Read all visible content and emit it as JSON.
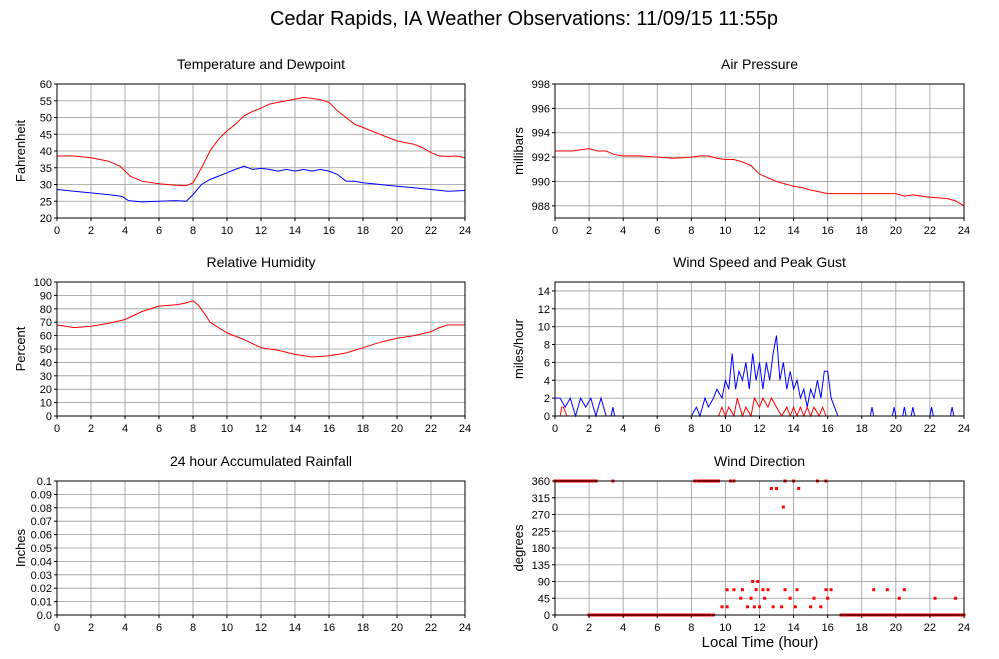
{
  "page": {
    "title": "Cedar Rapids, IA Weather Observations: 11/09/15 11:55p",
    "x_caption": "Local Time (hour)"
  },
  "colors": {
    "red": "#ff0000",
    "blue": "#0000ff",
    "grid": "#999999",
    "frame": "#000000"
  },
  "chart_data": [
    {
      "id": "temp",
      "type": "line",
      "title": "Temperature and Dewpoint",
      "ylabel": "Fahrenheit",
      "xlabel": "",
      "xlim": [
        0,
        24
      ],
      "ylim": [
        20,
        60
      ],
      "xticks": [
        0,
        2,
        4,
        6,
        8,
        10,
        12,
        14,
        16,
        18,
        20,
        22,
        24
      ],
      "yticks": [
        20,
        25,
        30,
        35,
        40,
        45,
        50,
        55,
        60
      ],
      "grid": true,
      "series": [
        {
          "color": "#ff0000",
          "x": [
            0,
            1,
            2,
            3,
            3.7,
            4.3,
            5,
            6,
            7,
            7.6,
            8,
            8.5,
            9,
            9.5,
            10,
            10.5,
            11,
            11.5,
            12,
            12.5,
            13,
            13.5,
            14,
            14.5,
            15,
            15.5,
            16,
            16.5,
            17,
            17.5,
            18,
            18.5,
            19,
            19.5,
            20,
            20.5,
            21,
            21.5,
            22,
            22.5,
            23,
            23.5,
            24
          ],
          "y": [
            38.5,
            38.5,
            38,
            37,
            35.5,
            32.5,
            31,
            30.2,
            29.8,
            29.6,
            30.5,
            35,
            40,
            43.5,
            46,
            48,
            50.5,
            51.8,
            52.8,
            54,
            54.5,
            55,
            55.5,
            56,
            55.7,
            55.3,
            54.5,
            52,
            50,
            48,
            47,
            46,
            45,
            44,
            43,
            42.5,
            42,
            41,
            39.5,
            38.5,
            38.4,
            38.5,
            38
          ]
        },
        {
          "color": "#0000ff",
          "x": [
            0,
            1,
            2,
            3,
            3.8,
            4.2,
            5,
            6,
            7,
            7.6,
            8,
            8.5,
            9,
            9.5,
            10,
            10.5,
            11,
            11.5,
            12,
            12.5,
            13,
            13.5,
            14,
            14.5,
            15,
            15.5,
            16,
            16.5,
            17,
            17.5,
            18,
            19,
            20,
            21,
            22,
            23,
            24
          ],
          "y": [
            28.5,
            28,
            27.5,
            27,
            26.5,
            25.2,
            24.8,
            25,
            25.2,
            25,
            27,
            30,
            31.5,
            32.5,
            33.5,
            34.5,
            35.5,
            34.5,
            34.8,
            34.5,
            34,
            34.5,
            34,
            34.5,
            34,
            34.5,
            34,
            33,
            31,
            31,
            30.5,
            30,
            29.5,
            29,
            28.5,
            28,
            28.2
          ]
        }
      ]
    },
    {
      "id": "pressure",
      "type": "line",
      "title": "Air Pressure",
      "ylabel": "millibars",
      "xlabel": "",
      "xlim": [
        0,
        24
      ],
      "ylim": [
        987,
        998
      ],
      "xticks": [
        0,
        2,
        4,
        6,
        8,
        10,
        12,
        14,
        16,
        18,
        20,
        22,
        24
      ],
      "yticks": [
        988,
        990,
        992,
        994,
        996,
        998
      ],
      "grid": true,
      "series": [
        {
          "color": "#ff0000",
          "x": [
            0,
            1,
            2,
            2.5,
            3,
            3.5,
            4,
            5,
            6,
            7,
            8,
            8.5,
            9,
            9.5,
            10,
            10.5,
            11,
            11.5,
            12,
            12.5,
            13,
            13.5,
            14,
            14.5,
            15,
            16,
            17,
            18,
            19,
            20,
            20.5,
            21,
            22,
            23,
            23.5,
            24
          ],
          "y": [
            992.5,
            992.5,
            992.7,
            992.5,
            992.5,
            992.2,
            992.1,
            992.1,
            992.0,
            991.9,
            992.0,
            992.1,
            992.1,
            991.9,
            991.8,
            991.8,
            991.6,
            991.3,
            990.6,
            990.3,
            990.0,
            989.8,
            989.6,
            989.5,
            989.3,
            989.0,
            989.0,
            989.0,
            989.0,
            989.0,
            988.8,
            988.9,
            988.7,
            988.6,
            988.4,
            988.0
          ]
        }
      ]
    },
    {
      "id": "rh",
      "type": "line",
      "title": "Relative Humidity",
      "ylabel": "Percent",
      "xlabel": "",
      "xlim": [
        0,
        24
      ],
      "ylim": [
        0,
        100
      ],
      "xticks": [
        0,
        2,
        4,
        6,
        8,
        10,
        12,
        14,
        16,
        18,
        20,
        22,
        24
      ],
      "yticks": [
        0,
        10,
        20,
        30,
        40,
        50,
        60,
        70,
        80,
        90,
        100
      ],
      "grid": true,
      "series": [
        {
          "color": "#ff0000",
          "x": [
            0,
            1,
            2,
            3,
            4,
            4.5,
            5,
            6,
            7,
            7.5,
            8,
            8.3,
            8.7,
            9,
            9.5,
            10,
            11,
            12,
            13,
            14,
            15,
            16,
            17,
            18,
            19,
            20,
            21,
            22,
            22.5,
            23,
            24
          ],
          "y": [
            68,
            66,
            67,
            69,
            72,
            75,
            78,
            82,
            83,
            84,
            86,
            83,
            76,
            70,
            66,
            62,
            57,
            51,
            49,
            46,
            44,
            45,
            47,
            51,
            55,
            58,
            60,
            63,
            66,
            68,
            68
          ]
        }
      ]
    },
    {
      "id": "wind",
      "type": "line",
      "title": "Wind Speed and Peak Gust",
      "ylabel": "miles/hour",
      "xlabel": "",
      "xlim": [
        0,
        24
      ],
      "ylim": [
        0,
        15
      ],
      "xticks": [
        0,
        2,
        4,
        6,
        8,
        10,
        12,
        14,
        16,
        18,
        20,
        22,
        24
      ],
      "yticks": [
        0,
        2,
        4,
        6,
        8,
        10,
        12,
        14
      ],
      "grid": true,
      "series": [
        {
          "color": "#0000ff",
          "x": [
            0,
            0.3,
            0.6,
            0.9,
            1.2,
            1.5,
            1.8,
            2.1,
            2.4,
            2.7,
            3.0,
            3.3,
            3.4,
            3.5,
            4.0,
            8.0,
            8.3,
            8.5,
            8.8,
            9.0,
            9.3,
            9.5,
            9.8,
            10.0,
            10.2,
            10.4,
            10.6,
            10.8,
            11.0,
            11.2,
            11.4,
            11.6,
            11.8,
            12.0,
            12.2,
            12.4,
            12.6,
            12.8,
            13.0,
            13.2,
            13.4,
            13.6,
            13.8,
            14.0,
            14.2,
            14.4,
            14.6,
            14.8,
            15.0,
            15.2,
            15.4,
            15.6,
            15.8,
            16.0,
            16.2,
            16.4,
            16.6,
            17.0,
            18.5,
            18.6,
            18.7,
            19.0,
            19.8,
            19.9,
            20.0,
            20.4,
            20.5,
            20.6,
            20.9,
            21.0,
            21.1,
            22.0,
            22.1,
            22.2,
            23.2,
            23.3,
            23.4,
            24.0
          ],
          "y": [
            2,
            2,
            1,
            2,
            0,
            2,
            1,
            2,
            0,
            2,
            0,
            0,
            1,
            0,
            0,
            0,
            1,
            0,
            2,
            1,
            2,
            3,
            2,
            4,
            3,
            7,
            3,
            5,
            4,
            6,
            3,
            7,
            4,
            6,
            3,
            6,
            4,
            7,
            9,
            4,
            6,
            3,
            5,
            3,
            4,
            2,
            3,
            1,
            3,
            2,
            4,
            2,
            5,
            5,
            2,
            1,
            0,
            0,
            0,
            1,
            0,
            0,
            0,
            1,
            0,
            0,
            1,
            0,
            0,
            1,
            0,
            0,
            1,
            0,
            0,
            1,
            0,
            0
          ]
        },
        {
          "color": "#ff0000",
          "x": [
            0,
            0.3,
            0.4,
            0.5,
            0.7,
            9.6,
            9.8,
            10.0,
            10.2,
            10.5,
            10.7,
            11.0,
            11.2,
            11.5,
            11.7,
            12.0,
            12.2,
            12.5,
            12.7,
            13.0,
            13.3,
            13.6,
            13.8,
            14.0,
            14.2,
            14.4,
            14.6,
            14.8,
            15.0,
            15.2,
            15.5,
            15.7,
            15.9,
            16.2,
            24.0
          ],
          "y": [
            0,
            0,
            1,
            1,
            0,
            0,
            1,
            0,
            1,
            0,
            2,
            0,
            1,
            0,
            2,
            1,
            2,
            1,
            2,
            1,
            0,
            1,
            0,
            1,
            0,
            1,
            0,
            1,
            0,
            1,
            0,
            1,
            0,
            0,
            0
          ]
        }
      ]
    },
    {
      "id": "rain",
      "type": "line",
      "title": "24 hour Accumulated Rainfall",
      "ylabel": "Inches",
      "xlabel": "",
      "xlim": [
        0,
        24
      ],
      "ylim": [
        0,
        0.1
      ],
      "xticks": [
        0,
        2,
        4,
        6,
        8,
        10,
        12,
        14,
        16,
        18,
        20,
        22,
        24
      ],
      "yticks": [
        0,
        0.01,
        0.02,
        0.03,
        0.04,
        0.05,
        0.06,
        0.07,
        0.08,
        0.09,
        0.1
      ],
      "ytick_labels": [
        "0.0",
        "0.01",
        "0.02",
        "0.03",
        "0.04",
        "0.05",
        "0.06",
        "0.07",
        "0.08",
        "0.09",
        "0.1"
      ],
      "grid": true,
      "series": [
        {
          "color": "#ff0000",
          "x": [
            0,
            24
          ],
          "y": [
            0,
            0
          ]
        }
      ]
    },
    {
      "id": "dir",
      "type": "scatter",
      "title": "Wind Direction",
      "ylabel": "degrees",
      "xlabel": "Local Time (hour)",
      "xlim": [
        0,
        24
      ],
      "ylim": [
        0,
        360
      ],
      "xticks": [
        0,
        2,
        4,
        6,
        8,
        10,
        12,
        14,
        16,
        18,
        20,
        22,
        24
      ],
      "yticks": [
        0,
        45,
        90,
        135,
        180,
        225,
        270,
        315,
        360
      ],
      "grid": true,
      "series": [
        {
          "color": "#ff0000",
          "points": [
            [
              0,
              360
            ],
            [
              2.4,
              360
            ],
            [
              3.4,
              360
            ],
            [
              8.2,
              360
            ],
            [
              9.6,
              360
            ],
            [
              10.3,
              360
            ],
            [
              10.5,
              360
            ],
            [
              12.7,
              340
            ],
            [
              13.0,
              340
            ],
            [
              13.5,
              360
            ],
            [
              14.0,
              360
            ],
            [
              14.3,
              340
            ],
            [
              15.4,
              360
            ],
            [
              15.9,
              360
            ],
            [
              13.4,
              290
            ],
            [
              11.6,
              90
            ],
            [
              11.9,
              90
            ],
            [
              10.1,
              68
            ],
            [
              10.5,
              68
            ],
            [
              11.0,
              68
            ],
            [
              11.8,
              68
            ],
            [
              12.2,
              68
            ],
            [
              12.5,
              68
            ],
            [
              13.5,
              68
            ],
            [
              14.2,
              68
            ],
            [
              15.9,
              68
            ],
            [
              16.2,
              68
            ],
            [
              18.7,
              68
            ],
            [
              19.5,
              68
            ],
            [
              20.5,
              68
            ],
            [
              10.9,
              45
            ],
            [
              11.5,
              45
            ],
            [
              12.3,
              45
            ],
            [
              13.8,
              45
            ],
            [
              15.2,
              45
            ],
            [
              16.0,
              45
            ],
            [
              20.2,
              45
            ],
            [
              22.3,
              45
            ],
            [
              23.5,
              45
            ],
            [
              9.8,
              22
            ],
            [
              10.1,
              22
            ],
            [
              11.3,
              22
            ],
            [
              11.7,
              22
            ],
            [
              12.0,
              22
            ],
            [
              12.8,
              22
            ],
            [
              13.3,
              22
            ],
            [
              14.1,
              22
            ],
            [
              15.0,
              22
            ],
            [
              15.6,
              22
            ],
            [
              2.0,
              0
            ],
            [
              4.0,
              0
            ],
            [
              6.0,
              0
            ],
            [
              8.0,
              0
            ],
            [
              9.3,
              0
            ],
            [
              16.8,
              0
            ],
            [
              18.0,
              0
            ],
            [
              20.0,
              0
            ],
            [
              22.0,
              0
            ],
            [
              24.0,
              0
            ]
          ],
          "bands": [
            {
              "from": 0,
              "to": 2.5,
              "y": 360
            },
            {
              "from": 8.3,
              "to": 9.6,
              "y": 360
            },
            {
              "from": 1.9,
              "to": 9.2,
              "y": 0
            },
            {
              "from": 16.7,
              "to": 24.0,
              "y": 0
            }
          ]
        }
      ]
    }
  ]
}
